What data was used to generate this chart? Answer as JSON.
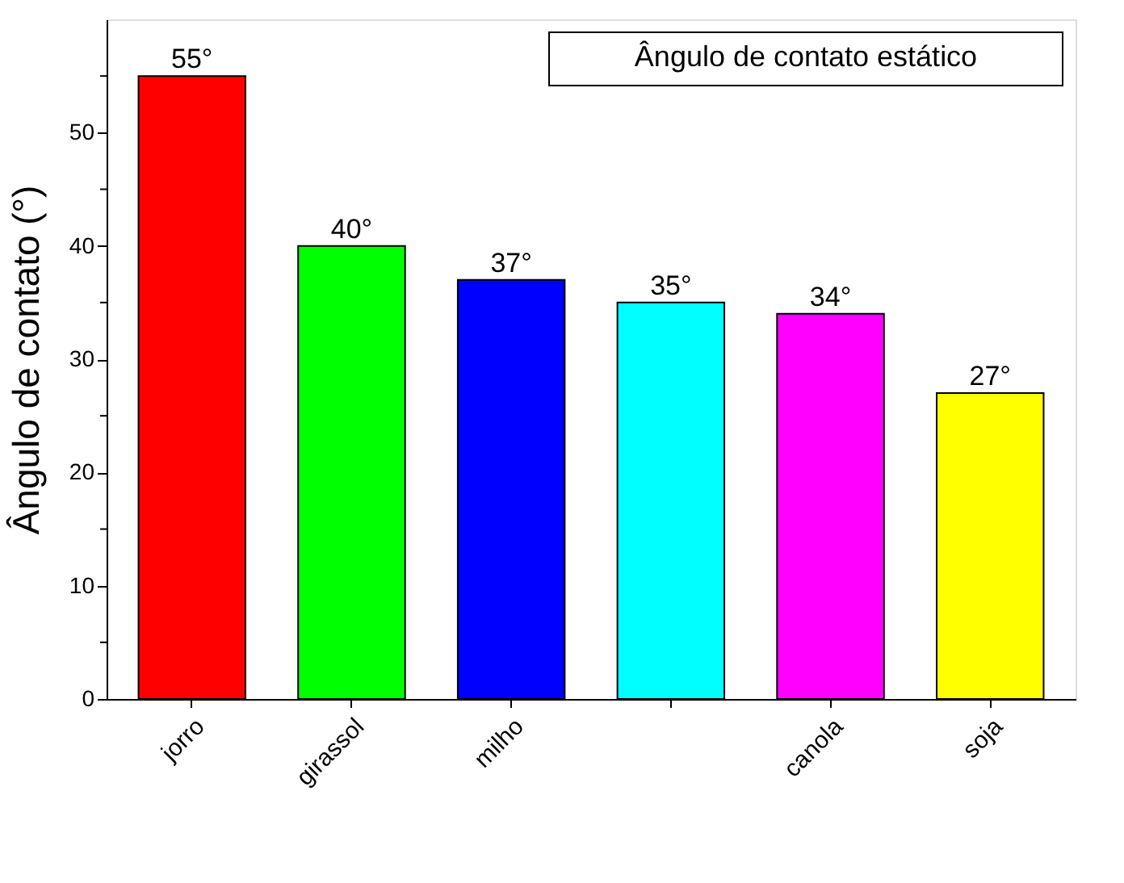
{
  "chart_data": {
    "type": "bar",
    "ylabel": "Ângulo de contato (°)",
    "categories": [
      "jorro",
      "girassol",
      "milho",
      null,
      "canola",
      "soja"
    ],
    "values": [
      55,
      40,
      37,
      35,
      34,
      27
    ],
    "value_labels": [
      "55°",
      "40°",
      "37°",
      "35°",
      "34°",
      "27°"
    ],
    "colors": [
      "#ff0000",
      "#00ff00",
      "#0000ff",
      "#00ffff",
      "#ff00ff",
      "#ffff00"
    ],
    "ylim": [
      0,
      60
    ],
    "yticks": [
      0,
      {
        "value": 5,
        "label": null
      },
      10,
      {
        "value": 15,
        "label": null
      },
      20,
      {
        "value": 25,
        "label": null
      },
      30,
      {
        "value": 35,
        "label": null
      },
      40,
      {
        "value": 45,
        "label": null
      },
      50,
      {
        "value": 55,
        "label": null
      }
    ],
    "annotations": [
      "Ângulo de contato estático"
    ],
    "grid": false
  }
}
